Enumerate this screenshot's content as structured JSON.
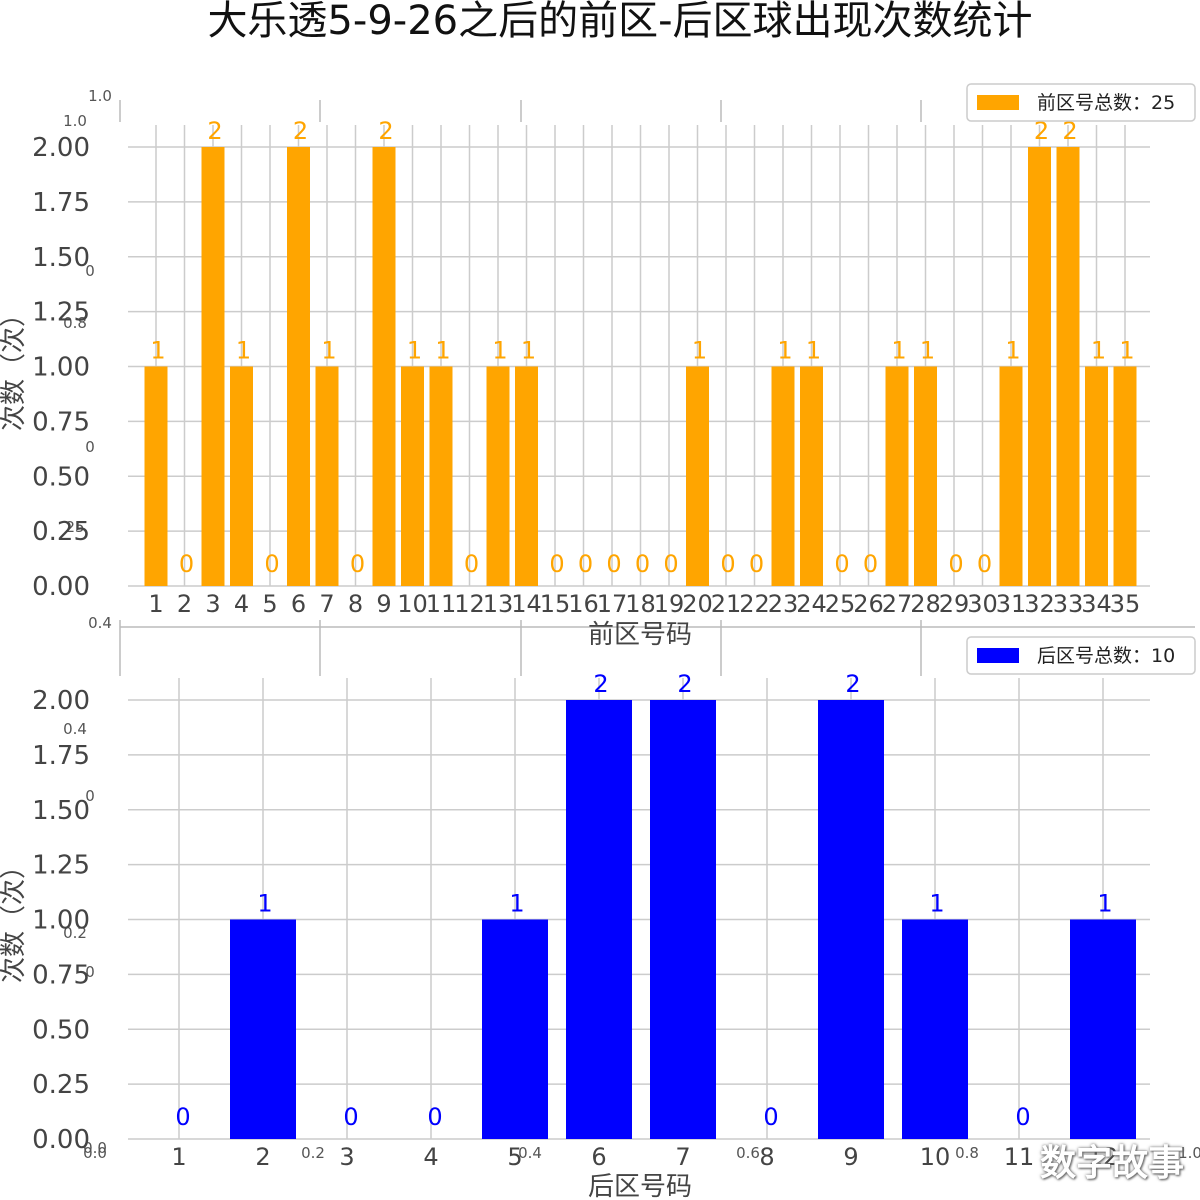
{
  "title": "大乐透5-9-26之后的前区-后区球出现次数统计",
  "watermark": "数字故事",
  "chart_data": [
    {
      "type": "bar",
      "color": "#FFA500",
      "legend": "前区号总数：25",
      "legend_position": "top-right",
      "xlabel": "前区号码",
      "ylabel": "次数（次）",
      "ylim": [
        0,
        2.0
      ],
      "yticks": [
        "0.00",
        "0.25",
        "0.50",
        "0.75",
        "1.00",
        "1.25",
        "1.50",
        "1.75",
        "2.00"
      ],
      "grid": true,
      "categories": [
        "1",
        "2",
        "3",
        "4",
        "5",
        "6",
        "7",
        "8",
        "9",
        "10",
        "11",
        "12",
        "13",
        "14",
        "15",
        "16",
        "17",
        "18",
        "19",
        "20",
        "21",
        "22",
        "23",
        "24",
        "25",
        "26",
        "27",
        "28",
        "29",
        "30",
        "31",
        "32",
        "33",
        "34",
        "35"
      ],
      "values": [
        1,
        0,
        2,
        1,
        0,
        2,
        1,
        0,
        2,
        1,
        1,
        0,
        1,
        1,
        0,
        0,
        0,
        0,
        0,
        1,
        0,
        0,
        1,
        1,
        0,
        0,
        1,
        1,
        0,
        0,
        1,
        2,
        2,
        1,
        1
      ]
    },
    {
      "type": "bar",
      "color": "#0000FF",
      "legend": "后区号总数：10",
      "legend_position": "top-right",
      "xlabel": "后区号码",
      "ylabel": "次数（次）",
      "ylim": [
        0,
        2.0
      ],
      "yticks": [
        "0.00",
        "0.25",
        "0.50",
        "0.75",
        "1.00",
        "1.25",
        "1.50",
        "1.75",
        "2.00"
      ],
      "grid": true,
      "categories": [
        "1",
        "2",
        "3",
        "4",
        "5",
        "6",
        "7",
        "8",
        "9",
        "10",
        "11",
        "12"
      ],
      "values": [
        0,
        1,
        0,
        0,
        1,
        2,
        2,
        0,
        2,
        1,
        0,
        1
      ]
    }
  ],
  "ghost_axis": {
    "left_ticks": [
      "1.0",
      "1.0",
      "0",
      "0.8",
      "0",
      "25",
      "0.4",
      "0.4",
      "0",
      "0.2",
      "0",
      "0.0"
    ],
    "bottom_ticks": [
      "0.0",
      "0.2",
      "0.4",
      "0.6",
      "0.8",
      "1.0"
    ]
  }
}
